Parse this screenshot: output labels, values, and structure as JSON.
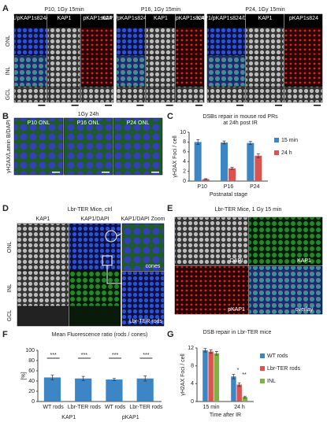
{
  "panel_labels": [
    "A",
    "B",
    "C",
    "D",
    "E",
    "F",
    "G"
  ],
  "panel_a": {
    "groups": [
      "P10, 1Gy 15min",
      "P16, 1Gy 15min",
      "P24, 1Gy 15min"
    ],
    "channels": [
      "KAP1/pKAP1s824/DAPI",
      "KAP1",
      "pKAP1s824"
    ],
    "rows": [
      "ONL",
      "INL",
      "GCL"
    ]
  },
  "panel_b": {
    "title": "1Gy 24h",
    "labels": [
      "P10 ONL",
      "P16 ONL",
      "P24 ONL"
    ],
    "stain": "γH2AX/Lamin B/DAPI"
  },
  "panel_d": {
    "title": "Lbr-TER Mice, ctrl",
    "columns": [
      "KAP1",
      "KAP1/DAPI",
      "KAP1/DAPI Zoom"
    ],
    "rows": [
      "ONL",
      "INL",
      "GCL"
    ],
    "insets": [
      "cones",
      "Lbr-TER rods"
    ]
  },
  "panel_e": {
    "title": "Lbr-TER Mice, 1 Gy 15 min",
    "labels": [
      "DAPI",
      "KAP1",
      "pKAP1",
      "overlay"
    ]
  },
  "chart_data": [
    {
      "type": "bar",
      "title": [
        "DSBs repair in mouse rod PRs",
        "at 24h post IR"
      ],
      "categories": [
        "P10",
        "P16",
        "P24"
      ],
      "series": [
        {
          "name": "15 min",
          "color": "#3d86c6",
          "values": [
            8.0,
            7.9,
            7.8
          ],
          "errors": [
            0.5,
            0.3,
            0.3
          ]
        },
        {
          "name": "24 h",
          "color": "#d9534f",
          "values": [
            0.4,
            2.6,
            5.2
          ],
          "errors": [
            0.1,
            0.2,
            0.4
          ]
        }
      ],
      "ylim": [
        0,
        10
      ],
      "yticks": [
        0,
        2,
        4,
        6,
        8,
        10
      ],
      "y_label": "γH2AX Foci / cell",
      "x_label": "Postnatal stage",
      "legend": "right"
    },
    {
      "type": "bar",
      "title": [
        "Mean Fluorescence ratio (rods / cones)"
      ],
      "categories": [
        "WT rods",
        "Lbr-TER rods",
        "WT rods",
        "Lbr-TER rods"
      ],
      "groups": [
        "KAP1",
        "pKAP1"
      ],
      "series": [
        {
          "color": "#3d86c6",
          "values": [
            47,
            45,
            43,
            45
          ],
          "errors": [
            5,
            4,
            2,
            5
          ]
        }
      ],
      "ylim": [
        0,
        100
      ],
      "yticks": [
        0,
        20,
        40,
        60,
        80,
        100
      ],
      "y_label": "[%]",
      "annotations": [
        "***",
        "***",
        "***",
        "***"
      ]
    },
    {
      "type": "bar",
      "title": [
        "DSB repair in Lbr-TER mice"
      ],
      "categories": [
        "15 min",
        "24 h"
      ],
      "series": [
        {
          "name": "WT rods",
          "color": "#3d86c6",
          "values": [
            11.5,
            5.6
          ],
          "errors": [
            0.4,
            0.5
          ]
        },
        {
          "name": "Lbr-TER rods",
          "color": "#d9534f",
          "values": [
            11.2,
            3.8
          ],
          "errors": [
            0.4,
            0.4
          ]
        },
        {
          "name": "INL",
          "color": "#7cb342",
          "values": [
            10.8,
            1.0
          ],
          "errors": [
            0.4,
            0.2
          ]
        }
      ],
      "ylim": [
        0,
        12
      ],
      "yticks": [
        0,
        4,
        8,
        12
      ],
      "y_label": "γH2AX Foci / cell",
      "x_label": "Time after IR",
      "legend": "right",
      "annotations": [
        "*",
        "**"
      ]
    }
  ]
}
